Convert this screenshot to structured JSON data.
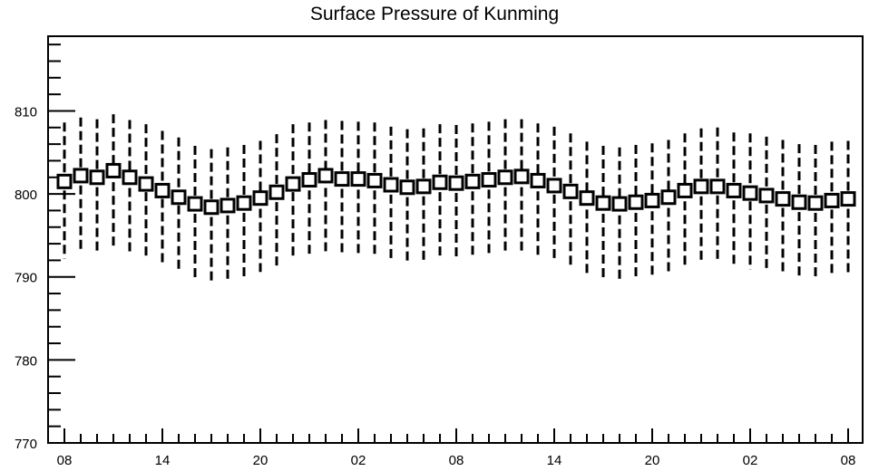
{
  "chart_data": {
    "type": "boxplot",
    "title": "Surface Pressure of Kunming",
    "xlabel": "",
    "ylabel": "",
    "ylim": [
      770,
      819
    ],
    "yticks": [
      770,
      780,
      790,
      800,
      810
    ],
    "xtick_labels": [
      "08",
      "14",
      "20",
      "02",
      "08",
      "14",
      "20",
      "02",
      "08"
    ],
    "x_tick_every": 6,
    "grid": false,
    "series": [
      {
        "marker": "open-square",
        "whisker_style": "dashed",
        "center": [
          801.5,
          802.2,
          802.0,
          802.8,
          802.0,
          801.2,
          800.4,
          799.6,
          798.8,
          798.4,
          798.6,
          798.9,
          799.5,
          800.2,
          801.2,
          801.7,
          802.2,
          801.8,
          801.8,
          801.6,
          801.1,
          800.8,
          800.9,
          801.4,
          801.3,
          801.5,
          801.7,
          802.0,
          802.1,
          801.6,
          801.0,
          800.3,
          799.5,
          798.9,
          798.8,
          799.0,
          799.2,
          799.6,
          800.4,
          800.9,
          800.9,
          800.4,
          800.1,
          799.8,
          799.4,
          799.0,
          798.9,
          799.2,
          799.4
        ],
        "upper": [
          808.6,
          809.2,
          809.0,
          809.6,
          808.9,
          808.4,
          807.6,
          806.8,
          805.8,
          805.4,
          805.6,
          805.9,
          806.4,
          807.2,
          808.4,
          808.6,
          808.9,
          808.8,
          808.7,
          808.6,
          808.1,
          807.8,
          807.9,
          808.4,
          808.3,
          808.5,
          808.7,
          809.0,
          809.0,
          808.5,
          808.1,
          807.3,
          806.3,
          805.8,
          805.6,
          805.9,
          806.1,
          806.5,
          807.3,
          807.9,
          808.0,
          807.4,
          807.3,
          806.9,
          806.5,
          806.0,
          805.9,
          806.3,
          806.4
        ],
        "lower": [
          792.2,
          793.0,
          792.8,
          793.6,
          793.0,
          792.3,
          791.4,
          790.6,
          789.9,
          789.4,
          789.6,
          789.9,
          790.6,
          791.3,
          792.3,
          792.8,
          793.1,
          792.7,
          792.6,
          792.4,
          792.0,
          791.6,
          791.8,
          792.3,
          792.2,
          792.4,
          792.6,
          792.9,
          793.0,
          792.5,
          792.0,
          791.3,
          790.4,
          789.9,
          789.6,
          789.9,
          790.2,
          790.6,
          791.3,
          791.8,
          791.8,
          791.2,
          790.9,
          790.6,
          790.3,
          789.9,
          789.8,
          790.1,
          790.2
        ]
      }
    ]
  }
}
